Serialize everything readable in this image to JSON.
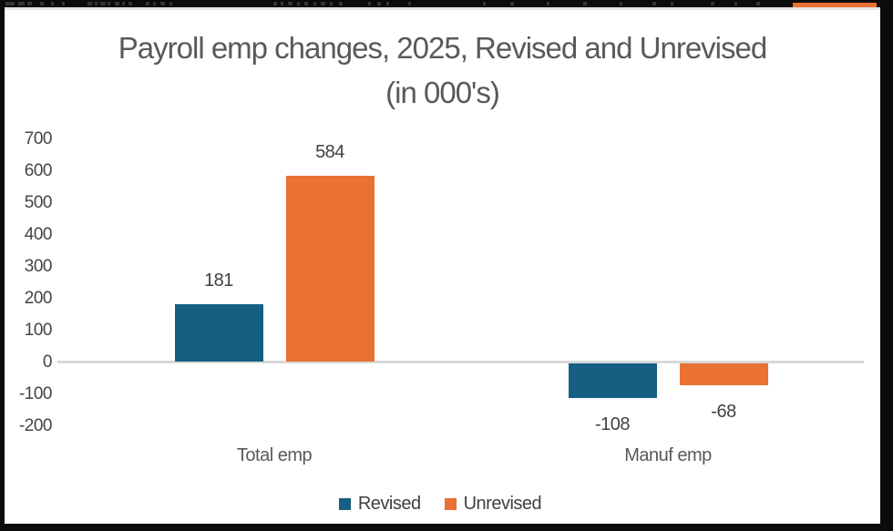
{
  "page": {
    "background": "#ffffff",
    "frame_color": "#0b0b0b"
  },
  "top_strip": {
    "accent_segment_color": "#E97132"
  },
  "chart_data": {
    "type": "bar",
    "title": "Payroll emp changes, 2025, Revised and Unrevised (in 000's)",
    "title_lines": [
      "Payroll emp changes, 2025, Revised and Unrevised",
      "(in 000's)"
    ],
    "categories": [
      "Total emp",
      "Manuf emp"
    ],
    "series": [
      {
        "name": "Revised",
        "color": "#156082",
        "values": [
          181,
          -108
        ]
      },
      {
        "name": "Unrevised",
        "color": "#E97132",
        "values": [
          584,
          -68
        ]
      }
    ],
    "y_ticks": [
      700,
      600,
      500,
      400,
      300,
      200,
      100,
      0,
      -100,
      -200
    ],
    "ylim": [
      -200,
      700
    ],
    "xlabel": "",
    "ylabel": "",
    "grid": false,
    "data_labels": true,
    "legend_position": "bottom",
    "colors": {
      "title_text": "#595959",
      "axis_text": "#444444",
      "value_label_text": "#404040",
      "axis_line": "#d9d9d9"
    }
  }
}
